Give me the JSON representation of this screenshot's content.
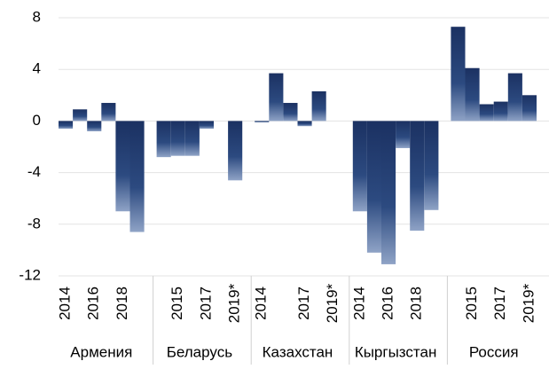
{
  "chart_data": {
    "type": "bar",
    "color": "#1b3162",
    "ylim": [
      -12,
      8
    ],
    "yticks": [
      -12,
      -8,
      -4,
      0,
      4,
      8
    ],
    "grid": true,
    "groups": [
      {
        "name": "Армения",
        "categories": [
          "2014",
          null,
          "2016",
          null,
          "2018",
          null
        ],
        "values": [
          -0.6,
          0.9,
          -0.8,
          1.4,
          -7.0,
          -8.6
        ]
      },
      {
        "name": "Беларусь",
        "categories": [
          null,
          "2015",
          null,
          "2017",
          null,
          "2019*"
        ],
        "values": [
          -2.8,
          -2.7,
          -2.7,
          -0.6,
          0,
          -4.6
        ]
      },
      {
        "name": "Казахстан",
        "categories": [
          "2014",
          null,
          null,
          "2017",
          null,
          "2019*"
        ],
        "values": [
          -0.1,
          3.7,
          1.4,
          -0.4,
          2.3,
          0
        ]
      },
      {
        "name": "Кыргызстан",
        "categories": [
          "2014",
          null,
          "2016",
          null,
          "2018",
          null
        ],
        "values": [
          -7.0,
          -10.2,
          -11.1,
          -2.1,
          -8.5,
          -6.9
        ]
      },
      {
        "name": "Россия",
        "categories": [
          null,
          "2015",
          null,
          "2017",
          null,
          "2019*"
        ],
        "values": [
          7.3,
          4.1,
          1.3,
          1.5,
          3.7,
          2.0
        ]
      }
    ]
  }
}
